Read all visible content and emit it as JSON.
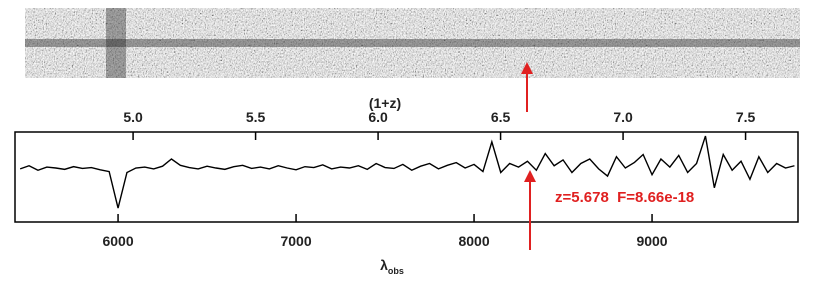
{
  "chart_data": {
    "type": "line",
    "xlabel": "λ",
    "xlabel_sub": "obs",
    "x2label": "(1+z)",
    "annotation": "z=5.678  F=8.66e-18",
    "xlim": [
      5421,
      9820
    ],
    "xticks": [
      6000,
      7000,
      8000,
      9000
    ],
    "x2lim": [
      4.518,
      7.714
    ],
    "x2ticks": [
      {
        "value": 5,
        "label": "5.0"
      },
      5.5,
      {
        "value": 6,
        "label": "6.0"
      },
      6.5,
      {
        "value": 7,
        "label": "7.0"
      },
      7.5
    ],
    "ylim": [
      -1,
      1
    ],
    "series": [
      {
        "color": "#000000",
        "x": [
          5450,
          5500,
          5550,
          5600,
          5650,
          5700,
          5750,
          5800,
          5850,
          5900,
          5950,
          6000,
          6050,
          6100,
          6150,
          6200,
          6250,
          6300,
          6350,
          6400,
          6450,
          6500,
          6550,
          6600,
          6650,
          6700,
          6750,
          6800,
          6850,
          6900,
          6950,
          7000,
          7050,
          7100,
          7150,
          7200,
          7250,
          7300,
          7350,
          7400,
          7450,
          7500,
          7550,
          7600,
          7650,
          7700,
          7750,
          7800,
          7850,
          7900,
          7950,
          8000,
          8050,
          8100,
          8150,
          8200,
          8250,
          8300,
          8350,
          8400,
          8450,
          8500,
          8550,
          8600,
          8650,
          8700,
          8750,
          8800,
          8850,
          8900,
          8950,
          9000,
          9050,
          9100,
          9150,
          9200,
          9250,
          9300,
          9350,
          9400,
          9450,
          9500,
          9550,
          9600,
          9650,
          9700,
          9750,
          9800
        ],
        "values": [
          0.18,
          0.25,
          0.15,
          0.22,
          0.2,
          0.17,
          0.23,
          0.19,
          0.21,
          0.16,
          0.12,
          -0.69,
          0.1,
          0.2,
          0.22,
          0.18,
          0.24,
          0.4,
          0.26,
          0.21,
          0.18,
          0.24,
          0.2,
          0.17,
          0.23,
          0.26,
          0.19,
          0.22,
          0.18,
          0.25,
          0.2,
          0.16,
          0.23,
          0.21,
          0.27,
          0.18,
          0.22,
          0.2,
          0.25,
          0.17,
          0.3,
          0.21,
          0.19,
          0.28,
          0.15,
          0.24,
          0.3,
          0.18,
          0.26,
          0.32,
          0.2,
          0.28,
          0.12,
          0.78,
          0.1,
          0.3,
          0.22,
          0.35,
          0.15,
          0.52,
          0.25,
          0.38,
          0.1,
          0.3,
          0.4,
          0.18,
          0.02,
          0.45,
          0.2,
          0.32,
          0.5,
          0.05,
          0.4,
          0.22,
          0.48,
          0.1,
          0.3,
          0.91,
          -0.24,
          0.5,
          0.15,
          0.35,
          -0.05,
          0.45,
          0.1,
          0.3,
          0.2,
          0.25
        ]
      }
    ]
  }
}
